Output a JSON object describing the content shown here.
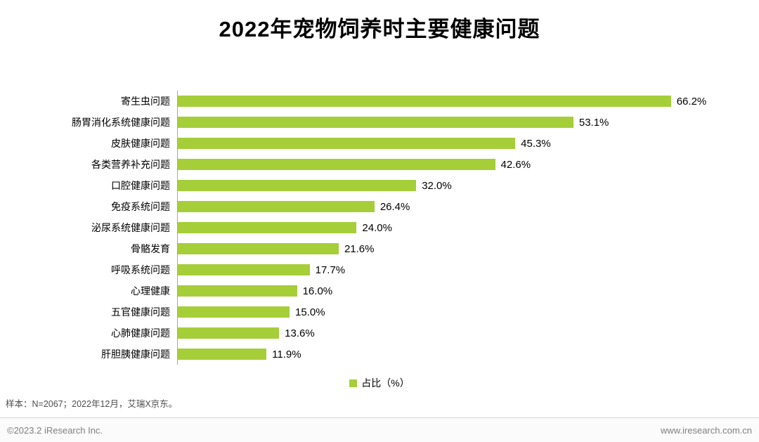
{
  "title": "2022年宠物饲养时主要健康问题",
  "chart_data": {
    "type": "bar",
    "orientation": "horizontal",
    "title": "2022年宠物饲养时主要健康问题",
    "categories": [
      "寄生虫问题",
      "肠胃消化系统健康问题",
      "皮肤健康问题",
      "各类营养补充问题",
      "口腔健康问题",
      "免疫系统问题",
      "泌尿系统健康问题",
      "骨骼发育",
      "呼吸系统问题",
      "心理健康",
      "五官健康问题",
      "心肺健康问题",
      "肝胆胰健康问题"
    ],
    "values": [
      66.2,
      53.1,
      45.3,
      42.6,
      32.0,
      26.4,
      24.0,
      21.6,
      17.7,
      16.0,
      15.0,
      13.6,
      11.9
    ],
    "value_labels": [
      "66.2%",
      "53.1%",
      "45.3%",
      "42.6%",
      "32.0%",
      "26.4%",
      "24.0%",
      "21.6%",
      "17.7%",
      "16.0%",
      "15.0%",
      "13.6%",
      "11.9%"
    ],
    "xlim": [
      0,
      70
    ],
    "bar_color": "#A5CE39",
    "axis_color": "#a6a6a6",
    "grid": false,
    "legend_position": "bottom-center",
    "legend": [
      {
        "label": "占比（%）",
        "color": "#A5CE39"
      }
    ]
  },
  "footer": {
    "sample_note": "样本：N=2067；2022年12月，艾瑞X京东。",
    "copyright": "©2023.2 iResearch Inc.",
    "website": "www.iresearch.com.cn"
  },
  "colors": {
    "bar": "#A5CE39",
    "axis": "#a6a6a6",
    "footer_text": "#7f7f7f"
  }
}
